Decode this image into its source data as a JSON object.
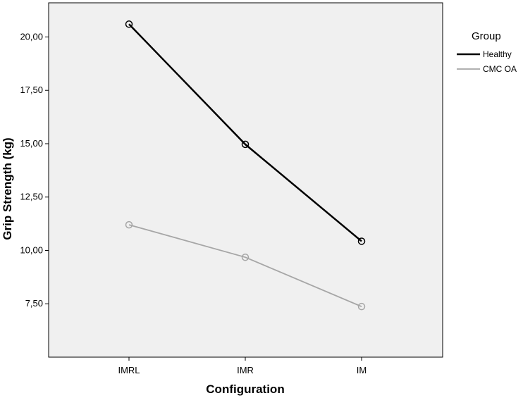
{
  "chart_data": {
    "type": "line",
    "categories": [
      "IMRL",
      "IMR",
      "IM"
    ],
    "xlabel": "Configuration",
    "ylabel": "Grip Strength (kg)",
    "y_ticks": [
      "7,50",
      "10,00",
      "12,50",
      "15,00",
      "17,50",
      "20,00"
    ],
    "y_tick_values": [
      7.5,
      10.0,
      12.5,
      15.0,
      17.5,
      20.0
    ],
    "ylim": [
      5.0,
      21.6
    ],
    "grid": false,
    "legend": {
      "title": "Group",
      "placement": "right-top"
    },
    "series": [
      {
        "name": "Healthy",
        "values": [
          20.6,
          14.97,
          10.43
        ],
        "color": "#000000"
      },
      {
        "name": "CMC OA",
        "values": [
          11.2,
          9.68,
          7.37
        ],
        "color": "#a6a6a6"
      }
    ],
    "plot_background": "#f0f0f0"
  }
}
